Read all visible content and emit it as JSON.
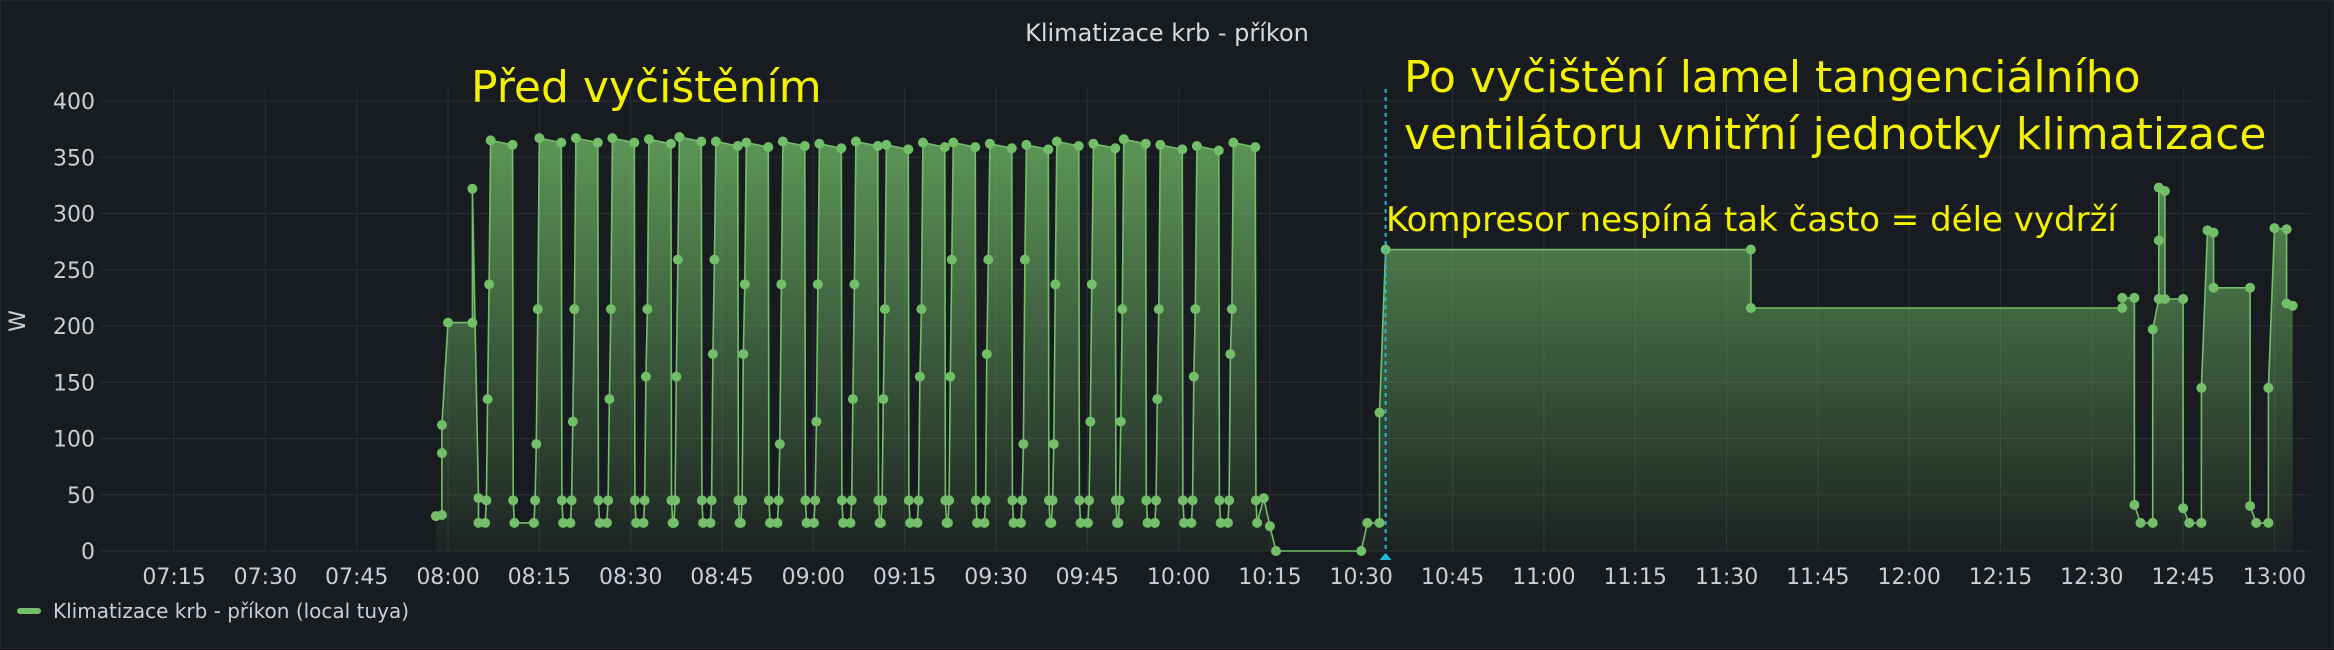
{
  "panel": {
    "title": "Klimatizace krb - příkon"
  },
  "chart_data": {
    "type": "area",
    "ylabel": "W",
    "ylim": [
      0,
      400
    ],
    "yticks": [
      0,
      50,
      100,
      150,
      200,
      250,
      300,
      350,
      400
    ],
    "xlim": [
      "07:03",
      "13:06"
    ],
    "xticks": [
      "07:15",
      "07:30",
      "07:45",
      "08:00",
      "08:15",
      "08:30",
      "08:45",
      "09:00",
      "09:15",
      "09:30",
      "09:45",
      "10:00",
      "10:15",
      "10:30",
      "10:45",
      "11:00",
      "11:15",
      "11:30",
      "11:45",
      "12:00",
      "12:15",
      "12:30",
      "12:45",
      "13:00"
    ],
    "grid": true,
    "legend": "bottom-left",
    "series": [
      {
        "name": "Klimatizace krb - příkon (local tuya)",
        "color": "#73bf69",
        "cycles": [
          [
            "08:07",
            365
          ],
          [
            "08:15",
            367
          ],
          [
            "08:21",
            367
          ],
          [
            "08:27",
            367
          ],
          [
            "08:33",
            366
          ],
          [
            "08:38",
            368
          ],
          [
            "08:44",
            364
          ],
          [
            "08:49",
            363
          ],
          [
            "08:55",
            364
          ],
          [
            "09:01",
            362
          ],
          [
            "09:07",
            364
          ],
          [
            "09:12",
            361
          ],
          [
            "09:18",
            363
          ],
          [
            "09:23",
            363
          ],
          [
            "09:29",
            362
          ],
          [
            "09:35",
            361
          ],
          [
            "09:40",
            364
          ],
          [
            "09:46",
            362
          ],
          [
            "09:51",
            366
          ],
          [
            "09:57",
            361
          ],
          [
            "10:03",
            360
          ],
          [
            "10:09",
            363
          ]
        ],
        "points": [
          [
            "07:58",
            31
          ],
          [
            "07:59",
            32
          ],
          [
            "07:59",
            87
          ],
          [
            "07:59",
            112
          ],
          [
            "08:00",
            203
          ],
          [
            "08:04",
            203
          ],
          [
            "08:04",
            322
          ],
          [
            "08:05",
            47
          ],
          [
            "08:05",
            25
          ],
          [
            "10:14",
            47
          ],
          [
            "10:15",
            22
          ],
          [
            "10:16",
            0
          ],
          [
            "10:30",
            0
          ],
          [
            "10:31",
            25
          ],
          [
            "10:33",
            25
          ],
          [
            "10:33",
            123
          ],
          [
            "10:34",
            268
          ],
          [
            "11:34",
            268
          ],
          [
            "11:34",
            216
          ],
          [
            "12:35",
            216
          ],
          [
            "12:35",
            225
          ],
          [
            "12:37",
            225
          ],
          [
            "12:37",
            41
          ],
          [
            "12:38",
            25
          ],
          [
            "12:40",
            25
          ],
          [
            "12:40",
            197
          ],
          [
            "12:41",
            224
          ],
          [
            "12:41",
            276
          ],
          [
            "12:41",
            323
          ],
          [
            "12:42",
            320
          ],
          [
            "12:42",
            224
          ],
          [
            "12:45",
            224
          ],
          [
            "12:45",
            38
          ],
          [
            "12:46",
            25
          ],
          [
            "12:48",
            25
          ],
          [
            "12:48",
            145
          ],
          [
            "12:49",
            285
          ],
          [
            "12:50",
            283
          ],
          [
            "12:50",
            234
          ],
          [
            "12:56",
            234
          ],
          [
            "12:56",
            40
          ],
          [
            "12:57",
            25
          ],
          [
            "12:59",
            25
          ],
          [
            "12:59",
            145
          ],
          [
            "13:00",
            287
          ],
          [
            "13:02",
            286
          ],
          [
            "13:02",
            220
          ],
          [
            "13:03",
            218
          ]
        ]
      }
    ],
    "annotation_time": "10:34",
    "annotations": [
      {
        "text": "Před vyčištěním"
      },
      {
        "text": "Po vyčištění lamel tangenciálního"
      },
      {
        "text": "ventilátoru vnitřní jednotky klimatizace"
      },
      {
        "text": "Kompresor nespíná tak často = déle vydrží"
      }
    ]
  }
}
